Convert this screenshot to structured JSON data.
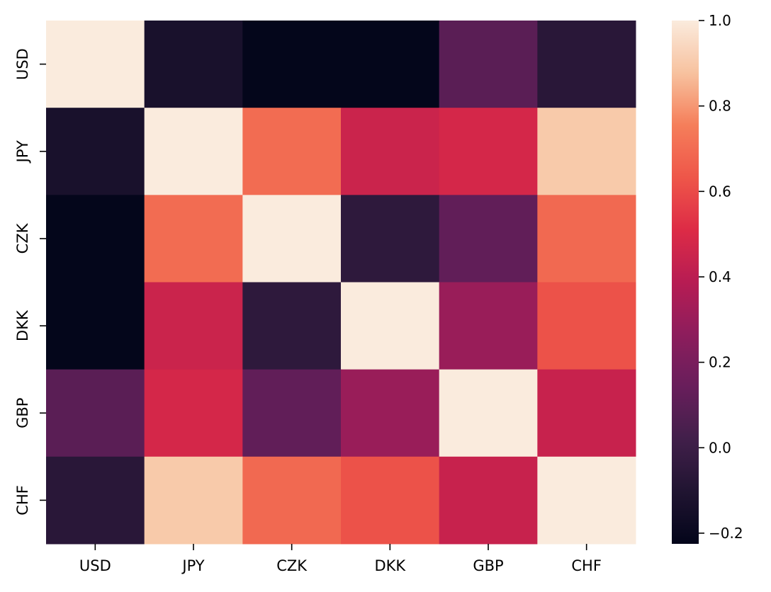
{
  "chart_data": {
    "type": "heatmap",
    "title": "",
    "xlabel": "",
    "ylabel": "",
    "x_categories": [
      "USD",
      "JPY",
      "CZK",
      "DKK",
      "GBP",
      "CHF"
    ],
    "y_categories": [
      "USD",
      "JPY",
      "CZK",
      "DKK",
      "GBP",
      "CHF"
    ],
    "values": [
      [
        1.0,
        -0.13,
        -0.22,
        -0.22,
        0.1,
        -0.07
      ],
      [
        -0.13,
        1.0,
        0.7,
        0.45,
        0.48,
        0.9
      ],
      [
        -0.22,
        0.7,
        1.0,
        -0.05,
        0.12,
        0.69
      ],
      [
        -0.22,
        0.45,
        -0.05,
        1.0,
        0.3,
        0.62
      ],
      [
        0.1,
        0.48,
        0.12,
        0.3,
        1.0,
        0.44
      ],
      [
        -0.07,
        0.9,
        0.69,
        0.62,
        0.44,
        1.0
      ]
    ],
    "vmin": -0.225,
    "vmax": 1.0,
    "colormap": "rocket",
    "colorbar": {
      "ticks": [
        1.0,
        0.8,
        0.6,
        0.4,
        0.2,
        0.0,
        -0.2
      ],
      "tick_labels": [
        "1.0",
        "0.8",
        "0.6",
        "0.4",
        "0.2",
        "0.0",
        "−0.2"
      ]
    },
    "grid": false,
    "legend": "colorbar-right"
  }
}
